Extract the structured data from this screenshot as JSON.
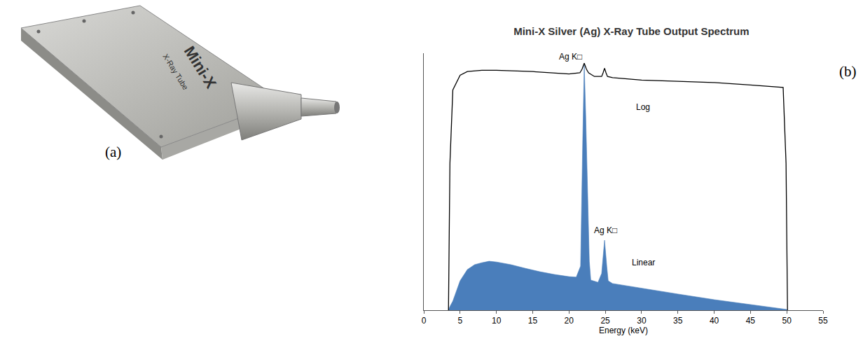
{
  "photo": {
    "panel_label": "(a)",
    "texts": [
      "Mini-X",
      "X-Ray Tube"
    ]
  },
  "chart_panel_label": "(b)",
  "chart_data": {
    "type": "line",
    "title": "Mini-X Silver (Ag) X-Ray Tube Output Spectrum",
    "x_label": "Energy (keV)",
    "xlim": [
      0,
      55
    ],
    "xticks": [
      0,
      5,
      10,
      15,
      20,
      25,
      30,
      35,
      40,
      45,
      50,
      55
    ],
    "ylim": [
      0,
      105
    ],
    "tick_labels": "x",
    "grid": false,
    "series": [
      {
        "type": "line",
        "color": "#000000",
        "line_style": "solid",
        "x": [
          3.4,
          3.6,
          4,
          5,
          6,
          8,
          10,
          15,
          20,
          21.5,
          21.8,
          22.1,
          22.4,
          22.7,
          23.5,
          24.5,
          24.7,
          24.9,
          25.1,
          25.3,
          26,
          30,
          35,
          40,
          45,
          49.5,
          49.9,
          50.1
        ],
        "values": [
          0,
          60,
          90,
          96,
          97.5,
          98,
          98,
          97.5,
          96.5,
          97,
          98.5,
          100.9,
          98.5,
          97,
          95.5,
          95.5,
          97,
          98.9,
          97,
          95.5,
          95,
          94,
          93.5,
          93,
          92,
          91,
          60,
          0
        ]
      },
      {
        "type": "area",
        "color": "#4a7ebb",
        "x": [
          3.4,
          3.6,
          4,
          5,
          6,
          7,
          8,
          9,
          10,
          12,
          14,
          16,
          18,
          20,
          21,
          21.6,
          21.9,
          22.1,
          22.3,
          22.5,
          22.8,
          23,
          24,
          24.5,
          24.9,
          25.2,
          25.4,
          26,
          30,
          35,
          40,
          45,
          50,
          50.1
        ],
        "values": [
          0,
          1.5,
          3.7,
          12,
          16.6,
          18.6,
          19.4,
          20,
          19.7,
          18.6,
          17.1,
          15.7,
          14.6,
          13.7,
          13.5,
          18,
          70,
          100.3,
          80,
          55,
          20,
          12.3,
          11.4,
          15,
          28.6,
          18,
          12,
          10.9,
          8.9,
          6.6,
          4.3,
          2.3,
          0.3,
          0
        ]
      }
    ],
    "annotations": [
      {
        "text": "Ag K□",
        "x": 22.0,
        "y": 101
      },
      {
        "text": "Ag K□",
        "x": 25.0,
        "y": 30
      },
      {
        "text": "Log",
        "x": 29,
        "y": 83
      },
      {
        "text": "Linear",
        "x": 28.5,
        "y": 19.4
      }
    ]
  }
}
